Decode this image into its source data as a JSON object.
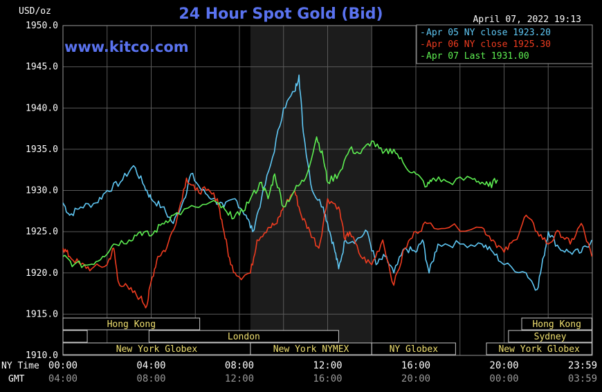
{
  "chart_data": {
    "type": "line",
    "title": "24 Hour Spot Gold (Bid)",
    "ylabel": "USD/oz",
    "watermark": "www.kitco.com",
    "timestamp": "April 07, 2022 19:13",
    "ylim": [
      1910,
      1950
    ],
    "yticks": [
      "1950.0",
      "1945.0",
      "1940.0",
      "1935.0",
      "1930.0",
      "1925.0",
      "1920.0",
      "1915.0",
      "1910.0"
    ],
    "xlim": [
      0,
      24
    ],
    "ny_time_label": "NY Time",
    "gmt_label": "GMT",
    "ny_time_ticks": [
      "00:00",
      "04:00",
      "08:00",
      "12:00",
      "16:00",
      "20:00",
      "23:59"
    ],
    "gmt_ticks": [
      "04:00",
      "08:00",
      "12:00",
      "16:00",
      "20:00",
      "00:00",
      "03:59"
    ],
    "highlight_range": [
      8.5,
      14
    ],
    "legend": [
      {
        "label": "Apr 05 NY close 1923.20",
        "color": "#5fc8f5"
      },
      {
        "label": "Apr 06 NY close 1925.30",
        "color": "#f03c20"
      },
      {
        "label": "Apr 07 Last 1931.00",
        "color": "#5ef052"
      }
    ],
    "series": [
      {
        "name": "Apr 05",
        "color": "#5fc8f5",
        "points": [
          [
            0,
            1928.5
          ],
          [
            0.3,
            1927
          ],
          [
            0.8,
            1928
          ],
          [
            1.5,
            1928.5
          ],
          [
            2,
            1930
          ],
          [
            2.6,
            1931
          ],
          [
            3.2,
            1933
          ],
          [
            3.7,
            1930.5
          ],
          [
            4,
            1929
          ],
          [
            4.5,
            1928
          ],
          [
            5,
            1926
          ],
          [
            5.5,
            1929
          ],
          [
            5.8,
            1932
          ],
          [
            6.3,
            1930
          ],
          [
            6.8,
            1929
          ],
          [
            7.3,
            1928
          ],
          [
            7.8,
            1929
          ],
          [
            8.3,
            1927
          ],
          [
            8.6,
            1925
          ],
          [
            9,
            1929
          ],
          [
            9.5,
            1934
          ],
          [
            10,
            1940
          ],
          [
            10.5,
            1942
          ],
          [
            10.7,
            1944
          ],
          [
            10.9,
            1937
          ],
          [
            11.3,
            1930
          ],
          [
            11.8,
            1928
          ],
          [
            12,
            1926
          ],
          [
            12.3,
            1923
          ],
          [
            12.5,
            1920.5
          ],
          [
            12.8,
            1924
          ],
          [
            13.3,
            1924
          ],
          [
            13.8,
            1925
          ],
          [
            14.2,
            1921
          ],
          [
            14.6,
            1922
          ],
          [
            15,
            1920
          ],
          [
            15.5,
            1923
          ],
          [
            16,
            1922.5
          ],
          [
            16.3,
            1924
          ],
          [
            16.6,
            1920
          ],
          [
            17,
            1923.5
          ],
          [
            18,
            1923.5
          ],
          [
            19,
            1923.5
          ],
          [
            19.5,
            1922.5
          ],
          [
            20,
            1921
          ],
          [
            21,
            1920
          ],
          [
            21.5,
            1918
          ],
          [
            21.8,
            1922
          ],
          [
            22,
            1925
          ],
          [
            22.5,
            1923
          ],
          [
            23,
            1922.5
          ],
          [
            23.5,
            1922.5
          ],
          [
            23.98,
            1924
          ]
        ]
      },
      {
        "name": "Apr 06",
        "color": "#f03c20",
        "points": [
          [
            0,
            1923
          ],
          [
            0.3,
            1922
          ],
          [
            0.8,
            1921
          ],
          [
            1.3,
            1920.5
          ],
          [
            2,
            1921
          ],
          [
            2.3,
            1923
          ],
          [
            2.5,
            1919
          ],
          [
            3,
            1918
          ],
          [
            3.5,
            1917
          ],
          [
            3.8,
            1916
          ],
          [
            4,
            1919
          ],
          [
            4.3,
            1922
          ],
          [
            4.7,
            1923
          ],
          [
            5.2,
            1927
          ],
          [
            5.6,
            1931.5
          ],
          [
            6,
            1930
          ],
          [
            6.5,
            1930
          ],
          [
            7,
            1929
          ],
          [
            7.3,
            1925
          ],
          [
            7.6,
            1921
          ],
          [
            8,
            1919.5
          ],
          [
            8.5,
            1920
          ],
          [
            8.8,
            1924
          ],
          [
            9.3,
            1925.5
          ],
          [
            9.7,
            1926
          ],
          [
            10,
            1928
          ],
          [
            10.5,
            1930
          ],
          [
            10.8,
            1927
          ],
          [
            11.2,
            1925
          ],
          [
            11.6,
            1923
          ],
          [
            12,
            1929
          ],
          [
            12.5,
            1928
          ],
          [
            12.8,
            1924
          ],
          [
            13,
            1925
          ],
          [
            13.5,
            1922
          ],
          [
            14,
            1921
          ],
          [
            14.5,
            1924
          ],
          [
            15,
            1918.5
          ],
          [
            15.5,
            1923
          ],
          [
            16,
            1925
          ],
          [
            16.5,
            1926
          ],
          [
            17.5,
            1925.5
          ],
          [
            19,
            1925.5
          ],
          [
            19.5,
            1924
          ],
          [
            20,
            1922.5
          ],
          [
            20.5,
            1924
          ],
          [
            21,
            1927
          ],
          [
            21.5,
            1925
          ],
          [
            22,
            1923.5
          ],
          [
            22.5,
            1925
          ],
          [
            23,
            1923.5
          ],
          [
            23.5,
            1926
          ],
          [
            23.98,
            1922
          ]
        ]
      },
      {
        "name": "Apr 07",
        "color": "#5ef052",
        "points": [
          [
            0,
            1922
          ],
          [
            0.5,
            1921
          ],
          [
            1.2,
            1921
          ],
          [
            1.8,
            1922
          ],
          [
            2.3,
            1923.5
          ],
          [
            3,
            1924
          ],
          [
            3.5,
            1925
          ],
          [
            4,
            1924.5
          ],
          [
            4.5,
            1926
          ],
          [
            5,
            1927
          ],
          [
            6,
            1928
          ],
          [
            7,
            1928.5
          ],
          [
            7.5,
            1927
          ],
          [
            8,
            1927
          ],
          [
            8.5,
            1929
          ],
          [
            9,
            1931
          ],
          [
            9.3,
            1929
          ],
          [
            9.6,
            1932
          ],
          [
            10,
            1928
          ],
          [
            10.5,
            1930
          ],
          [
            11,
            1931.5
          ],
          [
            11.5,
            1936.5
          ],
          [
            11.8,
            1934
          ],
          [
            12,
            1931
          ],
          [
            12.5,
            1932
          ],
          [
            13,
            1935
          ],
          [
            13.5,
            1934.5
          ],
          [
            14,
            1936
          ],
          [
            14.5,
            1934.5
          ],
          [
            15,
            1935
          ],
          [
            15.5,
            1933
          ],
          [
            16,
            1932
          ],
          [
            16.5,
            1930.5
          ],
          [
            16.8,
            1931.5
          ],
          [
            17.5,
            1931
          ],
          [
            18.5,
            1931.5
          ],
          [
            19,
            1931
          ],
          [
            19.3,
            1930.5
          ],
          [
            19.7,
            1931.3
          ]
        ]
      }
    ],
    "session_bars": [
      {
        "label": "Hong Kong",
        "row": 0,
        "start": 0,
        "end": 6.2
      },
      {
        "label": "Hong Kong",
        "row": 0,
        "start": 20.8,
        "end": 23.98
      },
      {
        "label": "",
        "row": 1,
        "start": 0,
        "end": 1.1
      },
      {
        "label": "London",
        "row": 1,
        "start": 3.9,
        "end": 12.5
      },
      {
        "label": "Sydney",
        "row": 1,
        "start": 20.2,
        "end": 23.98
      },
      {
        "label": "New York Globex",
        "row": 2,
        "start": 0,
        "end": 8.5
      },
      {
        "label": "New York NYMEX",
        "row": 2,
        "start": 8.5,
        "end": 14
      },
      {
        "label": "NY Globex",
        "row": 2,
        "start": 14,
        "end": 17.8
      },
      {
        "label": "New York Globex",
        "row": 2,
        "start": 19.2,
        "end": 23.98
      }
    ]
  }
}
